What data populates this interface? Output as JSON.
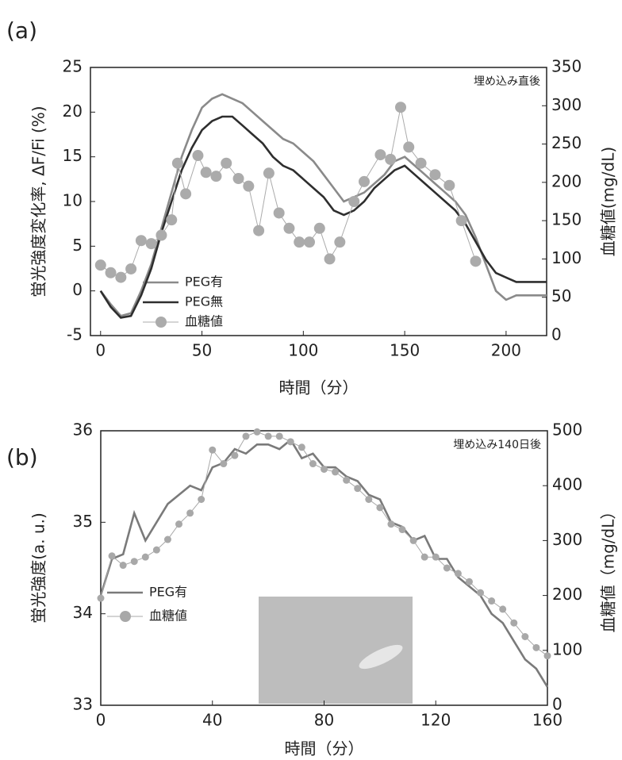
{
  "chart_data": [
    {
      "type": "line",
      "panel_label": "(a)",
      "annotation": "埋め込み直後",
      "x_label": "時間（分）",
      "y_label": "蛍光強度変化率, ΔF/Fi (%)",
      "y2_label": "血糖値(mg/dL)",
      "xlim": [
        -5,
        220
      ],
      "xticks": [
        0,
        50,
        100,
        150,
        200
      ],
      "ylim": [
        -5,
        25
      ],
      "yticks": [
        -5,
        0,
        5,
        10,
        15,
        20,
        25
      ],
      "y2lim": [
        0,
        350
      ],
      "y2ticks": [
        0,
        50,
        100,
        150,
        200,
        250,
        300,
        350
      ],
      "legend": "lower left",
      "series": [
        {
          "name": "PEG有",
          "color": "#8a8a8a",
          "marker": "none",
          "x": [
            0,
            5,
            10,
            15,
            20,
            25,
            30,
            35,
            40,
            45,
            50,
            55,
            60,
            65,
            70,
            75,
            80,
            85,
            90,
            95,
            100,
            105,
            110,
            115,
            120,
            125,
            130,
            135,
            140,
            145,
            150,
            155,
            160,
            165,
            170,
            175,
            180,
            185,
            190,
            195,
            200,
            205,
            210,
            215,
            220
          ],
          "values": [
            0,
            -1.5,
            -2.8,
            -2.5,
            0,
            3,
            7,
            11,
            15,
            18,
            20.5,
            21.5,
            22,
            21.5,
            21,
            20,
            19,
            18,
            17,
            16.5,
            15.5,
            14.5,
            13,
            11.5,
            10,
            10.5,
            11,
            12,
            13,
            14.5,
            15,
            14,
            13,
            12,
            11,
            10,
            8.5,
            6,
            3,
            0,
            -1,
            -0.5,
            -0.5,
            -0.5,
            -0.5
          ]
        },
        {
          "name": "PEG無",
          "color": "#2e2e2e",
          "marker": "none",
          "x": [
            0,
            5,
            10,
            15,
            20,
            25,
            30,
            35,
            40,
            45,
            50,
            55,
            60,
            65,
            70,
            75,
            80,
            85,
            90,
            95,
            100,
            105,
            110,
            115,
            120,
            125,
            130,
            135,
            140,
            145,
            150,
            155,
            160,
            165,
            170,
            175,
            180,
            185,
            190,
            195,
            200,
            205,
            210,
            215,
            220
          ],
          "values": [
            0,
            -1.8,
            -3,
            -2.8,
            -0.5,
            2.5,
            6.5,
            10,
            13.5,
            16,
            18,
            19,
            19.5,
            19.5,
            18.5,
            17.5,
            16.5,
            15,
            14,
            13.5,
            12.5,
            11.5,
            10.5,
            9,
            8.5,
            9,
            10,
            11.5,
            12.5,
            13.5,
            14,
            13,
            12,
            11,
            10,
            9,
            7.5,
            5.5,
            3.5,
            2,
            1.5,
            1,
            1,
            1,
            1
          ]
        },
        {
          "name": "血糖値",
          "color": "#ababab",
          "marker": "circle",
          "axis": "y2",
          "x": [
            0,
            5,
            10,
            15,
            20,
            25,
            30,
            35,
            38,
            42,
            48,
            52,
            57,
            62,
            68,
            73,
            78,
            83,
            88,
            93,
            98,
            103,
            108,
            113,
            118,
            125,
            130,
            138,
            143,
            148,
            152,
            158,
            165,
            172,
            178,
            185
          ],
          "values": [
            92,
            82,
            76,
            87,
            124,
            120,
            131,
            151,
            225,
            185,
            235,
            213,
            208,
            225,
            205,
            195,
            137,
            212,
            160,
            140,
            122,
            122,
            140,
            100,
            122,
            175,
            201,
            236,
            230,
            298,
            246,
            225,
            210,
            196,
            150,
            97
          ]
        }
      ]
    },
    {
      "type": "line",
      "panel_label": "(b)",
      "annotation": "埋め込み140日後",
      "x_label": "時間（分）",
      "y_label": "蛍光強度(a. u.)",
      "y2_label": "血糖値（mg/dL）",
      "xlim": [
        0,
        160
      ],
      "xticks": [
        0,
        40,
        80,
        120,
        160
      ],
      "ylim": [
        33,
        36
      ],
      "yticks": [
        33,
        34,
        35,
        36
      ],
      "y2lim": [
        0,
        500
      ],
      "y2ticks": [
        0,
        100,
        200,
        300,
        400,
        500
      ],
      "legend": "lower left",
      "series": [
        {
          "name": "PEG有",
          "color": "#7a7a7a",
          "marker": "none",
          "x": [
            0,
            4,
            8,
            12,
            16,
            20,
            24,
            28,
            32,
            36,
            40,
            44,
            48,
            52,
            56,
            60,
            64,
            68,
            72,
            76,
            80,
            84,
            88,
            92,
            96,
            100,
            104,
            108,
            112,
            116,
            120,
            124,
            128,
            132,
            136,
            140,
            144,
            148,
            152,
            156,
            160
          ],
          "values": [
            34.2,
            34.6,
            34.65,
            35.1,
            34.8,
            35.0,
            35.2,
            35.3,
            35.4,
            35.35,
            35.6,
            35.65,
            35.8,
            35.75,
            35.85,
            35.85,
            35.8,
            35.9,
            35.7,
            35.75,
            35.6,
            35.6,
            35.5,
            35.45,
            35.3,
            35.25,
            35.0,
            34.95,
            34.8,
            34.85,
            34.6,
            34.6,
            34.4,
            34.3,
            34.2,
            34.0,
            33.9,
            33.7,
            33.5,
            33.4,
            33.2
          ]
        },
        {
          "name": "血糖値",
          "color": "#a8a8a8",
          "marker": "circle",
          "axis": "y2",
          "x": [
            0,
            4,
            8,
            12,
            16,
            20,
            24,
            28,
            32,
            36,
            40,
            44,
            48,
            52,
            56,
            60,
            64,
            68,
            72,
            76,
            80,
            84,
            88,
            92,
            96,
            100,
            104,
            108,
            112,
            116,
            120,
            124,
            128,
            132,
            136,
            140,
            144,
            148,
            152,
            156,
            160
          ],
          "values": [
            195,
            272,
            255,
            262,
            270,
            283,
            302,
            330,
            350,
            375,
            465,
            440,
            455,
            490,
            498,
            490,
            490,
            480,
            470,
            440,
            430,
            425,
            410,
            395,
            375,
            360,
            330,
            320,
            300,
            270,
            270,
            250,
            240,
            225,
            205,
            190,
            175,
            150,
            125,
            105,
            90
          ]
        }
      ]
    }
  ]
}
